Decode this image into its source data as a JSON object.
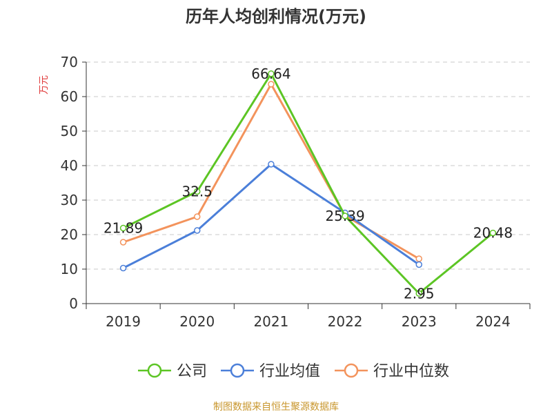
{
  "chart_data": {
    "type": "line",
    "title": "历年人均创利情况(万元)",
    "ylabel": "万元",
    "xlabel": "",
    "categories": [
      "2019",
      "2020",
      "2021",
      "2022",
      "2023",
      "2024"
    ],
    "ylim": [
      0,
      70
    ],
    "yticks": [
      0,
      10,
      20,
      30,
      40,
      50,
      60,
      70
    ],
    "grid": true,
    "legend": "bottom",
    "series": [
      {
        "name": "公司",
        "color": "#5cc524",
        "values": [
          21.89,
          32.5,
          66.64,
          25.39,
          2.95,
          20.48
        ],
        "labels": [
          "21.89",
          "32.5",
          "66.64",
          "25.39",
          "2.95",
          "20.48"
        ]
      },
      {
        "name": "行业均值",
        "color": "#4b7fd9",
        "values": [
          10.3,
          21.2,
          40.4,
          26.3,
          11.3,
          null
        ]
      },
      {
        "name": "行业中位数",
        "color": "#f3935c",
        "values": [
          17.8,
          25.2,
          63.6,
          25.5,
          13.0,
          null
        ]
      }
    ],
    "source": "制图数据来自恒生聚源数据库",
    "source_color": "#c8962c",
    "ylabel_color": "#e03c3c"
  }
}
